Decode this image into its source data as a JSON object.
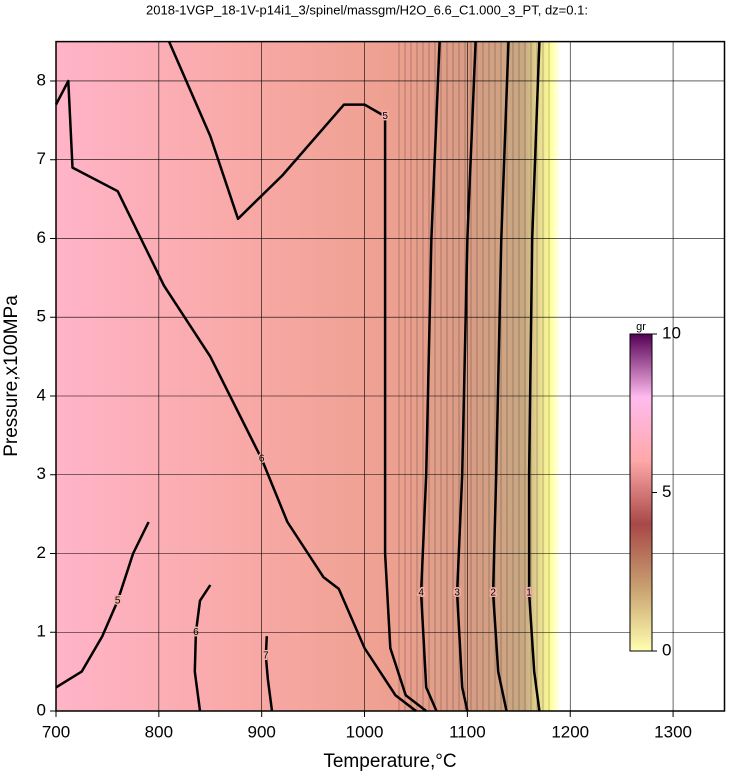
{
  "chart_data": {
    "type": "contour",
    "title": "2018-1VGP_18-1V-p14i1_3/spinel/massgm/H2O_6.6_C1.000_3_PT, dz=0.1:",
    "x_label": "Temperature,°C",
    "y_label": "Pressure,x100MPa",
    "xlim": [
      700,
      1350
    ],
    "ylim": [
      0,
      8.5
    ],
    "xticks": [
      700,
      800,
      900,
      1000,
      1100,
      1200,
      1300
    ],
    "yticks": [
      0,
      1,
      2,
      3,
      4,
      5,
      6,
      7,
      8
    ],
    "grid": true,
    "line_color": "#000000",
    "contours": [
      {
        "level": 1,
        "x": [
          1170,
          1163,
          1160,
          1160,
          1165,
          1170
        ],
        "y": [
          8.5,
          6,
          3,
          1.5,
          0.5,
          0
        ]
      },
      {
        "level": 2,
        "x": [
          1140,
          1133,
          1128,
          1125,
          1130,
          1138
        ],
        "y": [
          8.5,
          6,
          3,
          1.5,
          0.5,
          0
        ]
      },
      {
        "level": 3,
        "x": [
          1108,
          1100,
          1095,
          1090,
          1095,
          1100
        ],
        "y": [
          8.5,
          6,
          3,
          1.5,
          0.3,
          0
        ]
      },
      {
        "level": 4,
        "x": [
          1073,
          1065,
          1060,
          1055,
          1060,
          1070
        ],
        "y": [
          8.5,
          6,
          3,
          1.5,
          0.3,
          0
        ]
      },
      {
        "level": 5,
        "x": [
          810,
          850,
          877,
          920,
          980,
          1000,
          1020,
          1020,
          1020,
          1025,
          1040,
          1060
        ],
        "y": [
          8.5,
          7.3,
          6.25,
          6.8,
          7.7,
          7.7,
          7.55,
          4,
          2,
          0.8,
          0.2,
          0
        ]
      },
      {
        "level": 6,
        "x": [
          700,
          712,
          716,
          760,
          805,
          850,
          900,
          925,
          960,
          975,
          1000,
          1030,
          1050
        ],
        "y": [
          7.7,
          8.0,
          6.9,
          6.6,
          5.4,
          4.5,
          3.2,
          2.4,
          1.7,
          1.55,
          0.8,
          0.2,
          0
        ]
      },
      {
        "level": 5,
        "x": [
          700,
          725,
          745,
          760,
          775,
          790
        ],
        "y": [
          0.3,
          0.5,
          0.95,
          1.4,
          2.0,
          2.4
        ]
      },
      {
        "level": 6,
        "x": [
          840,
          835,
          836,
          840,
          850
        ],
        "y": [
          0,
          0.5,
          1.0,
          1.4,
          1.6
        ]
      },
      {
        "level": 7,
        "x": [
          910,
          906,
          904,
          905
        ],
        "y": [
          0,
          0.4,
          0.7,
          0.95
        ]
      }
    ],
    "colorbar": {
      "label": "gr",
      "lim": [
        0,
        10
      ],
      "ticks": [
        0,
        5,
        10
      ],
      "colors": [
        "#ffffb0",
        "#c8a070",
        "#a84848",
        "#ffa8a8",
        "#ffbbee",
        "#550055"
      ]
    }
  }
}
